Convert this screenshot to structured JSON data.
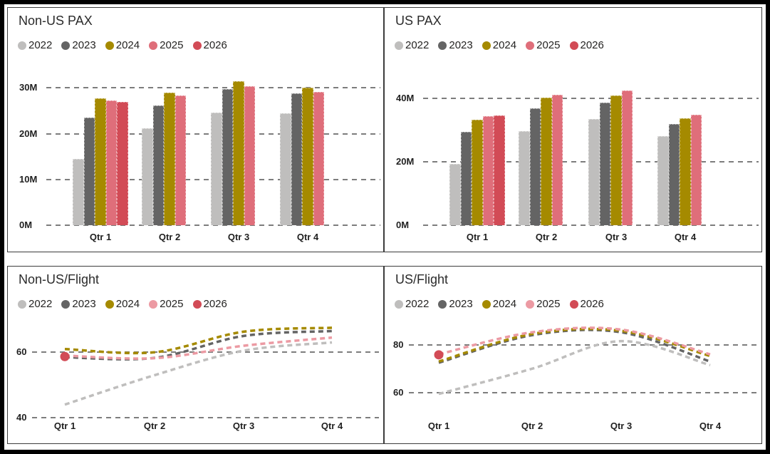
{
  "colors": {
    "frame": "#000000",
    "panel_border": "#3c3c3c",
    "gridline": "#7d7d7d",
    "text": "#252423"
  },
  "chart_data": [
    {
      "id": "non-us-pax",
      "type": "bar",
      "title": "Non-US PAX",
      "categories": [
        "Qtr 1",
        "Qtr 2",
        "Qtr 3",
        "Qtr 4"
      ],
      "y_ticks": [
        0,
        10,
        20,
        30
      ],
      "y_tick_labels": [
        "0M",
        "10M",
        "20M",
        "30M"
      ],
      "ylim": [
        0,
        33.5
      ],
      "grid": "dashed-horizontal",
      "legend_position": "top-left",
      "series": [
        {
          "name": "2022",
          "color": "#bfbebd",
          "values": [
            14.5,
            21.2,
            24.6,
            24.4
          ]
        },
        {
          "name": "2023",
          "color": "#646464",
          "values": [
            23.5,
            26.2,
            29.7,
            28.8
          ]
        },
        {
          "name": "2024",
          "color": "#a58a00",
          "values": [
            27.8,
            29.0,
            31.5,
            30.0
          ]
        },
        {
          "name": "2025",
          "color": "#df6e7a",
          "values": [
            27.3,
            28.4,
            30.4,
            29.1
          ]
        },
        {
          "name": "2026",
          "color": "#d24b56",
          "values": [
            26.9,
            null,
            null,
            null
          ]
        }
      ]
    },
    {
      "id": "us-pax",
      "type": "bar",
      "title": "US PAX",
      "categories": [
        "Qtr 1",
        "Qtr 2",
        "Qtr 3",
        "Qtr 4"
      ],
      "y_ticks": [
        0,
        20,
        40
      ],
      "y_tick_labels": [
        "0M",
        "20M",
        "40M"
      ],
      "ylim": [
        0,
        44
      ],
      "grid": "dashed-horizontal",
      "legend_position": "top-left",
      "series": [
        {
          "name": "2022",
          "color": "#bfbebd",
          "values": [
            19.4,
            29.6,
            33.5,
            28.1
          ]
        },
        {
          "name": "2023",
          "color": "#646464",
          "values": [
            29.4,
            36.8,
            38.5,
            31.8
          ]
        },
        {
          "name": "2024",
          "color": "#a58a00",
          "values": [
            33.1,
            40.2,
            40.8,
            33.6
          ]
        },
        {
          "name": "2025",
          "color": "#df6e7a",
          "values": [
            34.4,
            41.1,
            42.5,
            34.7
          ]
        },
        {
          "name": "2026",
          "color": "#d24b56",
          "values": [
            34.6,
            null,
            null,
            null
          ]
        }
      ]
    },
    {
      "id": "non-us-per-flight",
      "type": "line",
      "title": "Non-US/Flight",
      "categories": [
        "Qtr 1",
        "Qtr 2",
        "Qtr 3",
        "Qtr 4"
      ],
      "y_ticks": [
        40,
        60
      ],
      "y_tick_labels": [
        "40",
        "60"
      ],
      "ylim": [
        38,
        70
      ],
      "grid": "dashed-horizontal",
      "legend_position": "top-left",
      "line_style": "dashed",
      "series": [
        {
          "name": "2022",
          "color": "#bfbebd",
          "values": [
            44,
            53,
            60.5,
            63
          ]
        },
        {
          "name": "2023",
          "color": "#646464",
          "values": [
            58.5,
            58.3,
            65,
            66.5
          ]
        },
        {
          "name": "2024",
          "color": "#a58a00",
          "values": [
            61,
            60,
            66.3,
            67.5
          ]
        },
        {
          "name": "2025",
          "color": "#ec9aa3",
          "values": [
            59,
            58.2,
            62,
            64.5
          ]
        },
        {
          "name": "2026",
          "color": "#d24b56",
          "values": [
            58.7,
            null,
            null,
            null
          ],
          "marker": "dot"
        }
      ]
    },
    {
      "id": "us-per-flight",
      "type": "line",
      "title": "US/Flight",
      "categories": [
        "Qtr 1",
        "Qtr 2",
        "Qtr 3",
        "Qtr 4"
      ],
      "y_ticks": [
        60,
        80
      ],
      "y_tick_labels": [
        "60",
        "80"
      ],
      "ylim": [
        55,
        90
      ],
      "grid": "dashed-horizontal",
      "legend_position": "top-left",
      "line_style": "dashed",
      "series": [
        {
          "name": "2022",
          "color": "#bfbebd",
          "values": [
            59.5,
            70,
            81.5,
            71.5
          ]
        },
        {
          "name": "2023",
          "color": "#646464",
          "values": [
            72.5,
            84,
            85.2,
            73
          ]
        },
        {
          "name": "2024",
          "color": "#a58a00",
          "values": [
            73,
            84.5,
            85.8,
            75.3
          ]
        },
        {
          "name": "2025",
          "color": "#ec9aa3",
          "values": [
            76,
            85.2,
            86.3,
            76
          ]
        },
        {
          "name": "2026",
          "color": "#d24b56",
          "values": [
            75.8,
            null,
            null,
            null
          ],
          "marker": "dot"
        }
      ]
    }
  ]
}
